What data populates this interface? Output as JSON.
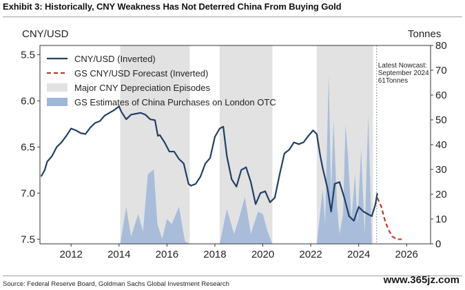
{
  "header": {
    "title": "Exhibit 3: Historically, CNY Weakness Has Not Deterred China From Buying Gold"
  },
  "footer": {
    "source": "Source: Federal Reserve Board, Goldman Sachs Global Investment Research",
    "watermark": "www.365jz.com"
  },
  "colors": {
    "cny_line": "#1f3f66",
    "forecast_line": "#c0392b",
    "shade": "#e2e2e2",
    "purchases_fill": "#9fb6d8",
    "nowcast_line": "#7f93b5"
  },
  "chart_data": {
    "type": "line",
    "xlim": [
      2010.7,
      2027.0
    ],
    "left_axis": {
      "label": "CNY/USD",
      "inverted": true,
      "range": [
        5.4,
        7.55
      ],
      "ticks": [
        "5.5",
        "6.0",
        "6.5",
        "7.0",
        "7.5"
      ],
      "tick_values": [
        5.5,
        6.0,
        6.5,
        7.0,
        7.5
      ]
    },
    "right_axis": {
      "label": "Tonnes",
      "range": [
        0,
        80
      ],
      "ticks": [
        "0",
        "10",
        "20",
        "30",
        "40",
        "50",
        "60",
        "70",
        "80"
      ],
      "tick_values": [
        0,
        10,
        20,
        30,
        40,
        50,
        60,
        70,
        80
      ]
    },
    "x_ticks": [
      "2012",
      "2014",
      "2016",
      "2018",
      "2020",
      "2022",
      "2024",
      "2026"
    ],
    "x_tick_values": [
      2012,
      2014,
      2016,
      2018,
      2020,
      2022,
      2024,
      2026
    ],
    "legend": [
      {
        "label": "CNY/USD (Inverted)",
        "style": "line"
      },
      {
        "label": "GS CNY/USD Forecast (Inverted)",
        "style": "dashed"
      },
      {
        "label": "Major CNY Depreciation Episodes",
        "style": "shade"
      },
      {
        "label": "GS Estimates of China Purchases on London OTC",
        "style": "area"
      }
    ],
    "shaded_periods": [
      [
        2014.05,
        2016.95
      ],
      [
        2018.2,
        2020.4
      ],
      [
        2022.25,
        2024.6
      ]
    ],
    "annotation": {
      "x": 2024.75,
      "lines": [
        "Latest Nowcast:",
        "September 2024",
        "61Tonnes"
      ]
    },
    "series": [
      {
        "name": "CNY/USD (Inverted)",
        "axis": "left",
        "x": [
          2010.75,
          2010.9,
          2011.0,
          2011.2,
          2011.4,
          2011.6,
          2011.8,
          2012.0,
          2012.2,
          2012.4,
          2012.6,
          2012.8,
          2013.0,
          2013.2,
          2013.4,
          2013.6,
          2013.8,
          2014.0,
          2014.1,
          2014.3,
          2014.5,
          2014.7,
          2014.9,
          2015.1,
          2015.3,
          2015.5,
          2015.62,
          2015.7,
          2015.9,
          2016.1,
          2016.3,
          2016.5,
          2016.7,
          2016.9,
          2017.0,
          2017.2,
          2017.4,
          2017.6,
          2017.8,
          2018.0,
          2018.2,
          2018.35,
          2018.5,
          2018.7,
          2018.9,
          2019.1,
          2019.3,
          2019.5,
          2019.7,
          2019.9,
          2020.1,
          2020.3,
          2020.5,
          2020.7,
          2020.9,
          2021.1,
          2021.3,
          2021.5,
          2021.7,
          2021.9,
          2022.1,
          2022.25,
          2022.4,
          2022.5,
          2022.7,
          2022.85,
          2023.0,
          2023.2,
          2023.4,
          2023.6,
          2023.8,
          2024.0,
          2024.2,
          2024.4,
          2024.55,
          2024.7,
          2024.78
        ],
        "values": [
          6.82,
          6.75,
          6.66,
          6.6,
          6.5,
          6.45,
          6.38,
          6.3,
          6.32,
          6.35,
          6.36,
          6.29,
          6.24,
          6.22,
          6.16,
          6.13,
          6.1,
          6.06,
          6.12,
          6.2,
          6.15,
          6.14,
          6.13,
          6.15,
          6.2,
          6.21,
          6.38,
          6.37,
          6.45,
          6.55,
          6.55,
          6.63,
          6.68,
          6.9,
          6.92,
          6.9,
          6.82,
          6.68,
          6.62,
          6.39,
          6.3,
          6.28,
          6.6,
          6.85,
          6.93,
          6.75,
          6.72,
          6.88,
          7.12,
          7.0,
          6.98,
          7.1,
          7.05,
          6.8,
          6.57,
          6.53,
          6.45,
          6.47,
          6.45,
          6.38,
          6.32,
          6.36,
          6.6,
          6.73,
          6.95,
          7.2,
          6.9,
          6.88,
          7.05,
          7.25,
          7.3,
          7.15,
          7.2,
          7.23,
          7.25,
          7.12,
          7.0
        ]
      },
      {
        "name": "GS CNY/USD Forecast (Inverted)",
        "axis": "left",
        "x": [
          2024.78,
          2024.95,
          2025.1,
          2025.25,
          2025.4,
          2025.6,
          2025.8
        ],
        "values": [
          7.05,
          7.15,
          7.3,
          7.4,
          7.47,
          7.5,
          7.5
        ]
      },
      {
        "name": "GS Estimates of China Purchases on London OTC",
        "axis": "right",
        "x": [
          2014.05,
          2014.3,
          2014.5,
          2014.8,
          2015.0,
          2015.2,
          2015.45,
          2015.6,
          2015.8,
          2016.0,
          2016.2,
          2016.5,
          2016.75,
          2016.95,
          2018.2,
          2018.5,
          2018.8,
          2019.0,
          2019.25,
          2019.5,
          2019.8,
          2020.0,
          2020.2,
          2020.4,
          2022.25,
          2022.5,
          2022.6,
          2022.75,
          2022.85,
          2022.95,
          2023.1,
          2023.2,
          2023.35,
          2023.45,
          2023.55,
          2023.7,
          2023.85,
          2023.95,
          2024.1,
          2024.25,
          2024.4,
          2024.55
        ],
        "values": [
          0,
          15,
          3,
          12,
          5,
          28,
          30,
          8,
          2,
          10,
          8,
          15,
          1,
          0,
          0,
          14,
          4,
          10,
          19,
          4,
          13,
          12,
          5,
          0,
          0,
          22,
          8,
          68,
          20,
          50,
          15,
          4,
          12,
          48,
          36,
          10,
          28,
          8,
          38,
          4,
          52,
          0
        ]
      }
    ]
  }
}
